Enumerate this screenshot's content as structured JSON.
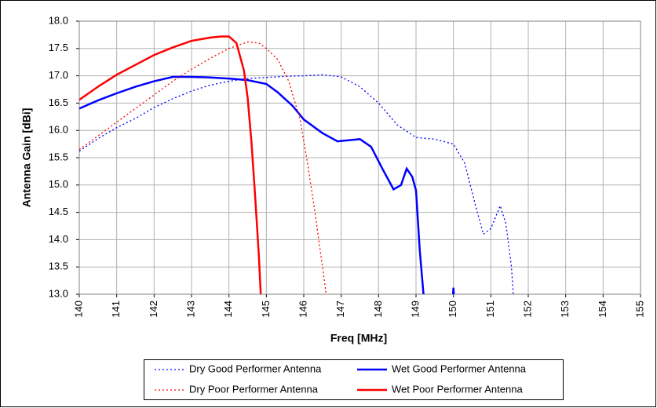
{
  "chart_data": {
    "type": "line",
    "x_label": "Freq [MHz]",
    "y_label": "Antenna Gain [dBi]",
    "xlim": [
      140,
      155
    ],
    "xticks": [
      140,
      141,
      142,
      143,
      144,
      145,
      146,
      147,
      148,
      149,
      150,
      151,
      152,
      153,
      154,
      155
    ],
    "ylim": [
      13,
      18
    ],
    "yticks": [
      {
        "value": 13,
        "label": "13.0"
      },
      13.5,
      {
        "value": 14,
        "label": "14.0"
      },
      14.5,
      {
        "value": 15,
        "label": "15.0"
      },
      15.5,
      {
        "value": 16,
        "label": "16.0"
      },
      16.5,
      {
        "value": 17,
        "label": "17.0"
      },
      17.5,
      {
        "value": 18,
        "label": "18.0"
      }
    ],
    "grid": true,
    "legend": "bottom",
    "series": [
      {
        "name": "Dry Good Performer Antenna",
        "color": "#0000ff",
        "style": "dotted",
        "x": [
          140,
          140.5,
          141,
          141.5,
          142,
          142.5,
          143,
          143.5,
          144,
          144.5,
          145,
          145.5,
          146,
          146.5,
          147,
          147.5,
          148,
          148.5,
          149,
          149.5,
          150,
          150.3,
          150.6,
          150.8,
          151,
          151.25,
          151.4,
          151.55,
          151.6
        ],
        "values": [
          15.62,
          15.85,
          16.05,
          16.22,
          16.42,
          16.58,
          16.72,
          16.83,
          16.9,
          16.95,
          16.97,
          16.99,
          17.0,
          17.02,
          16.98,
          16.8,
          16.5,
          16.1,
          15.87,
          15.84,
          15.75,
          15.4,
          14.6,
          14.1,
          14.2,
          14.62,
          14.3,
          13.5,
          13.0
        ]
      },
      {
        "name": "Wet Good Performer Antenna",
        "color": "#0000ff",
        "style": "solid",
        "x": [
          140,
          140.5,
          141,
          141.5,
          142,
          142.5,
          143,
          143.5,
          144,
          144.5,
          145,
          145.3,
          145.7,
          146,
          146.5,
          146.9,
          147.2,
          147.5,
          147.8,
          148.1,
          148.4,
          148.6,
          148.75,
          148.9,
          149,
          149.1,
          149.2,
          149.6,
          149.99,
          150,
          150.01
        ],
        "values": [
          16.4,
          16.55,
          16.68,
          16.8,
          16.9,
          16.98,
          16.98,
          16.97,
          16.95,
          16.92,
          16.85,
          16.7,
          16.45,
          16.2,
          15.95,
          15.8,
          15.82,
          15.84,
          15.7,
          15.3,
          14.92,
          15.0,
          15.3,
          15.15,
          14.9,
          13.8,
          13.0,
          null,
          13.0,
          13.12,
          13.0
        ]
      },
      {
        "name": "Dry Poor Performer Antenna",
        "color": "#ff0000",
        "style": "dotted",
        "x": [
          140,
          140.5,
          141,
          141.5,
          142,
          142.5,
          143,
          143.5,
          144,
          144.5,
          144.8,
          145,
          145.3,
          145.6,
          145.9,
          146.1,
          146.3,
          146.5,
          146.6
        ],
        "values": [
          15.65,
          15.9,
          16.15,
          16.4,
          16.65,
          16.9,
          17.12,
          17.32,
          17.5,
          17.62,
          17.6,
          17.5,
          17.3,
          16.9,
          16.2,
          15.4,
          14.5,
          13.5,
          13.0
        ]
      },
      {
        "name": "Wet Poor Performer Antenna",
        "color": "#ff0000",
        "style": "solid",
        "x": [
          140,
          140.5,
          141,
          141.5,
          142,
          142.5,
          143,
          143.5,
          143.8,
          144,
          144.2,
          144.4,
          144.5,
          144.6,
          144.7,
          144.8,
          144.85
        ],
        "values": [
          16.56,
          16.8,
          17.02,
          17.2,
          17.38,
          17.52,
          17.64,
          17.7,
          17.72,
          17.72,
          17.6,
          17.1,
          16.6,
          15.8,
          14.8,
          13.7,
          13.0
        ]
      }
    ]
  }
}
